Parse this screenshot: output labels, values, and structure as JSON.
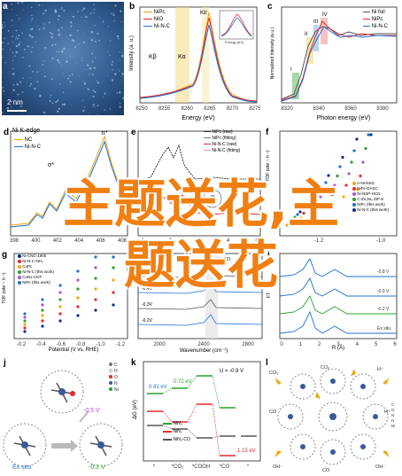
{
  "panels": {
    "a": {
      "letter": "a",
      "scale": "2 nm"
    },
    "b": {
      "letter": "b",
      "legend": [
        "NiPc",
        "NiO",
        "Ni-N-C"
      ],
      "xlabel": "Energy (eV)",
      "ylabel": "Intensity (a. u.)",
      "xticks": [
        "8250",
        "8255",
        "8260",
        "8265",
        "8270",
        "8275"
      ],
      "annot": [
        "Kβ",
        "Kα",
        "Kb'"
      ],
      "inset": "Energy (eV)"
    },
    "c": {
      "letter": "c",
      "legend": [
        "Ni foil",
        "NiPc",
        "Ni-N-C"
      ],
      "xlabel": "Photon energy (eV)",
      "ylabel": "Normalized Intensity (a.u.)",
      "xticks": [
        "8320",
        "8340",
        "8360",
        "8380"
      ],
      "annot": [
        "I",
        "II",
        "III",
        "IV"
      ]
    },
    "d": {
      "letter": "d",
      "title": "Ni K-edge",
      "legend": [
        "NC",
        "Ni-N-C"
      ],
      "xlabel": "Energy (eV)",
      "ylabel": "Intensity",
      "xticks": [
        "398",
        "400",
        "402",
        "404",
        "406",
        "408"
      ],
      "annot": [
        "π*",
        "σ*"
      ]
    },
    "e": {
      "letter": "e",
      "legend": [
        "NiPc (raw)",
        "NiPc (fitting)",
        "Ni-N-C (raw)",
        "Ni-N-C (fitting)"
      ],
      "xticks": [
        "-2",
        "0",
        "2",
        "4",
        "6"
      ]
    },
    "f": {
      "letter": "f",
      "ylabel": "TOF (site⁻¹ h⁻¹)",
      "xlabel": "Potential (V vs. RHE)",
      "xticks": [
        "-1.2",
        "-1.0"
      ],
      "legend": [
        "A-Ni-NSG",
        "NiFe-DASC",
        "Ni-NSP-HCN",
        "C-Zn₁Ni₄ ZIF-8",
        "NiPc (this work)",
        "Ni-N-C (this work)"
      ]
    },
    "g": {
      "letter": "g",
      "ylabel": "TOF (site⁻¹ h⁻¹)",
      "xlabel": "Potential (V vs. RHE)",
      "xticks": [
        "-0.2",
        "-0.4",
        "-0.6",
        "-0.8",
        "-1.0",
        "-1.2"
      ],
      "legend": [
        "Ni-CNC-1000",
        "Ni-N-C-NH₂",
        "CoPc",
        "Ni-N-C (this work)",
        "CoNx-CNT",
        "NiPc (this work)"
      ]
    },
    "h": {
      "letter": "h",
      "xlabel": "Wavenumber (cm⁻¹)",
      "xticks": [
        "2000",
        "2400",
        "2800"
      ],
      "levels": [
        "-0.5V",
        "-0.4V",
        "-0.3V",
        "-0.2V"
      ],
      "annot": "Ni-CO"
    },
    "i": {
      "letter": "i",
      "xlabel": "R (Å)",
      "ylabel": "FT",
      "xticks": [
        "0",
        "1",
        "2",
        "3",
        "4",
        "5",
        "6"
      ],
      "levels": [
        "-0.8 V",
        "-0.5 V",
        "-0.2 V",
        "Ex situ"
      ]
    },
    "j": {
      "letter": "j",
      "labels": [
        "Ex situ",
        "-0.5 V",
        "-0.2 V"
      ],
      "legend": [
        "C",
        "H",
        "O",
        "N",
        "Ni"
      ]
    },
    "k": {
      "letter": "k",
      "ylabel": "ΔG (eV)",
      "xticks": [
        "*",
        "*CO₂",
        "*COOH",
        "*CO",
        "*"
      ],
      "condition": "U = -0.9 V",
      "energies": [
        "0.41 eV",
        "0.72 eV",
        "1.15 eV"
      ],
      "legend": [
        "NiN₄",
        "NiN₂",
        "NiN₂-CO"
      ]
    },
    "l": {
      "letter": "l",
      "species": [
        "CO₂",
        "CO₂",
        "H⁺",
        "CO",
        "H⁺",
        "OH⁻",
        "CO",
        "OH⁻"
      ],
      "legend": [
        "C",
        "O",
        "N",
        "H",
        "Ni"
      ]
    }
  },
  "overlay": {
    "line1": "主题送花,主",
    "line2": "题送花"
  },
  "colors": {
    "overlay": "#f07f12",
    "red": "#e8262b",
    "blue": "#1f6fd1",
    "green": "#2ca02c",
    "gray": "#555555"
  }
}
